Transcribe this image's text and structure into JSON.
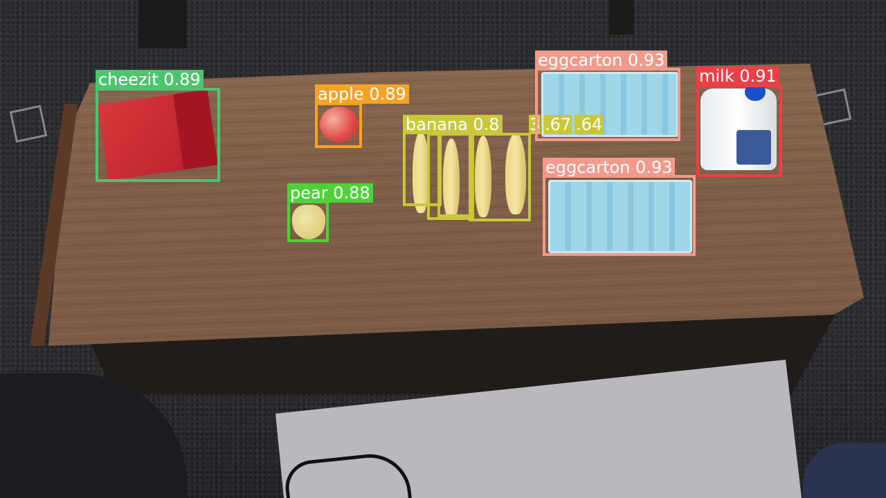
{
  "detections": [
    {
      "label": "cheezit 0.89",
      "color": "#4fc46f"
    },
    {
      "label": "apple 0.89",
      "color": "#f5a324"
    },
    {
      "label": "banana 0.8",
      "color": "#c9c83a"
    },
    {
      "label": ".67",
      "color": "#c9c83a"
    },
    {
      "label": ".64",
      "color": "#c9c83a"
    },
    {
      "label": "3",
      "color": "#c9c83a"
    },
    {
      "label": "pear 0.88",
      "color": "#4fd13a"
    },
    {
      "label": "eggcarton 0.93",
      "color": "#f39a8c"
    },
    {
      "label": "eggcarton 0.93",
      "color": "#f39a8c"
    },
    {
      "label": "milk 0.91",
      "color": "#ef3f46"
    }
  ]
}
